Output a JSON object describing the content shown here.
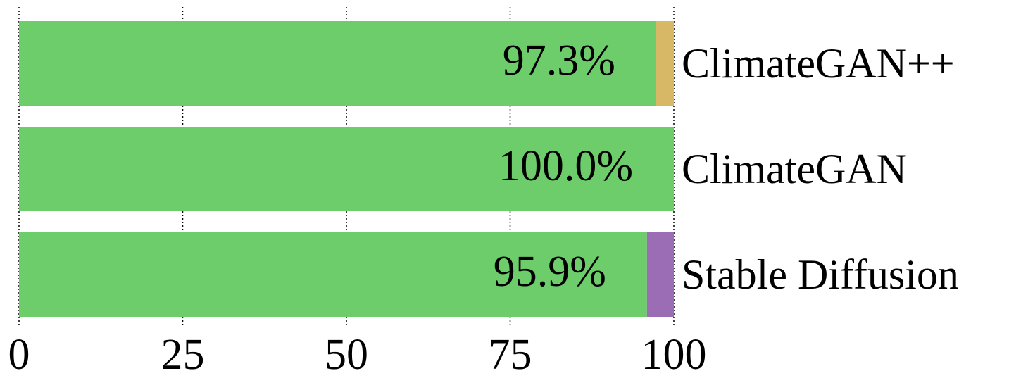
{
  "chart_data": {
    "type": "stacked-barh",
    "categories": [
      "ClimateGAN++",
      "ClimateGAN",
      "Stable Diffusion"
    ],
    "series": [
      {
        "color": "#6ccd6a",
        "values": [
          97.3,
          100.0,
          95.9
        ],
        "value_labels": [
          "97.3%",
          "100.0%",
          "95.9%"
        ]
      },
      {
        "color": "#d6b866",
        "values": [
          2.7,
          null,
          null
        ]
      },
      {
        "color": "#9a6db5",
        "values": [
          null,
          null,
          4.1
        ]
      }
    ],
    "xlim": [
      0,
      100
    ],
    "xticks": [
      0,
      25,
      50,
      75,
      100
    ],
    "grid": true
  }
}
